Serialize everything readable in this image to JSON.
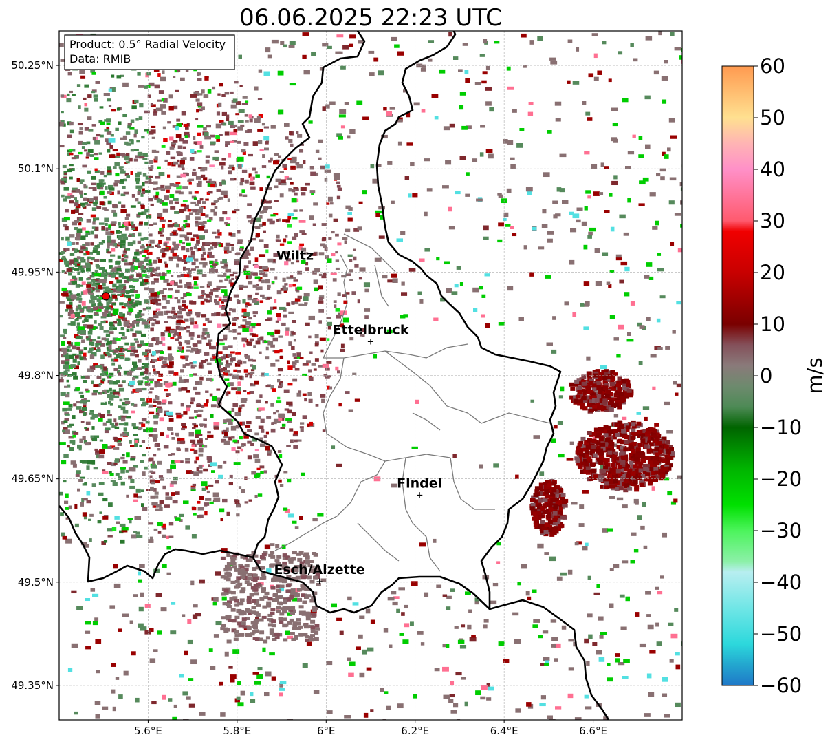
{
  "title": "06.06.2025 22:23 UTC",
  "info": {
    "product_line": "Product: 0.5° Radial Velocity",
    "data_line": "Data: RMIB"
  },
  "map": {
    "lon_range": [
      5.4,
      6.8
    ],
    "lat_range": [
      49.3,
      50.3
    ],
    "x_ticks": [
      {
        "value": 5.6,
        "label": "5.6°E"
      },
      {
        "value": 5.8,
        "label": "5.8°E"
      },
      {
        "value": 6.0,
        "label": "6°E"
      },
      {
        "value": 6.2,
        "label": "6.2°E"
      },
      {
        "value": 6.4,
        "label": "6.4°E"
      },
      {
        "value": 6.6,
        "label": "6.6°E"
      }
    ],
    "y_ticks": [
      {
        "value": 50.25,
        "label": "50.25°N"
      },
      {
        "value": 50.1,
        "label": "50.1°N"
      },
      {
        "value": 49.95,
        "label": "49.95°N"
      },
      {
        "value": 49.8,
        "label": "49.8°N"
      },
      {
        "value": 49.65,
        "label": "49.65°N"
      },
      {
        "value": 49.5,
        "label": "49.5°N"
      },
      {
        "value": 49.35,
        "label": "49.35°N"
      }
    ],
    "grid": true,
    "radar_site": {
      "lon": 5.505,
      "lat": 49.915
    },
    "cities": [
      {
        "name": "Wiltz",
        "lon": 5.93,
        "lat": 49.97,
        "marker": false
      },
      {
        "name": "Ettelbruck",
        "lon": 6.1,
        "lat": 49.85,
        "marker": true
      },
      {
        "name": "Findel",
        "lon": 6.21,
        "lat": 49.627,
        "marker": true
      },
      {
        "name": "Esch/Alzette",
        "lon": 5.985,
        "lat": 49.502,
        "marker": true
      }
    ]
  },
  "colorbar": {
    "label": "m/s",
    "range": [
      -60,
      60
    ],
    "ticks": [
      {
        "value": 60,
        "label": "60"
      },
      {
        "value": 50,
        "label": "50"
      },
      {
        "value": 40,
        "label": "40"
      },
      {
        "value": 30,
        "label": "30"
      },
      {
        "value": 20,
        "label": "20"
      },
      {
        "value": 10,
        "label": "10"
      },
      {
        "value": 0,
        "label": "0"
      },
      {
        "value": -10,
        "label": "−10"
      },
      {
        "value": -20,
        "label": "−20"
      },
      {
        "value": -30,
        "label": "−30"
      },
      {
        "value": -40,
        "label": "−40"
      },
      {
        "value": -50,
        "label": "−50"
      },
      {
        "value": -60,
        "label": "−60"
      }
    ],
    "stops": [
      {
        "value": -60,
        "color": "#1f78c8"
      },
      {
        "value": -56,
        "color": "#23a6cf"
      },
      {
        "value": -52,
        "color": "#2cd8dc"
      },
      {
        "value": -45,
        "color": "#70e6e6"
      },
      {
        "value": -38,
        "color": "#b8eef0"
      },
      {
        "value": -36,
        "color": "#8cf0a8"
      },
      {
        "value": -30,
        "color": "#4cf45c"
      },
      {
        "value": -25,
        "color": "#00e000"
      },
      {
        "value": -18,
        "color": "#00b400"
      },
      {
        "value": -10,
        "color": "#006400"
      },
      {
        "value": -6,
        "color": "#4e8a56"
      },
      {
        "value": -2,
        "color": "#6e8a6e"
      },
      {
        "value": 2,
        "color": "#8a7a7a"
      },
      {
        "value": 6,
        "color": "#84505a"
      },
      {
        "value": 10,
        "color": "#7a0000"
      },
      {
        "value": 20,
        "color": "#c80000"
      },
      {
        "value": 28,
        "color": "#f00000"
      },
      {
        "value": 30,
        "color": "#ff5a6e"
      },
      {
        "value": 40,
        "color": "#ff90c8"
      },
      {
        "value": 45,
        "color": "#ffb4b4"
      },
      {
        "value": 50,
        "color": "#ffe090"
      },
      {
        "value": 60,
        "color": "#ff9a50"
      }
    ]
  }
}
